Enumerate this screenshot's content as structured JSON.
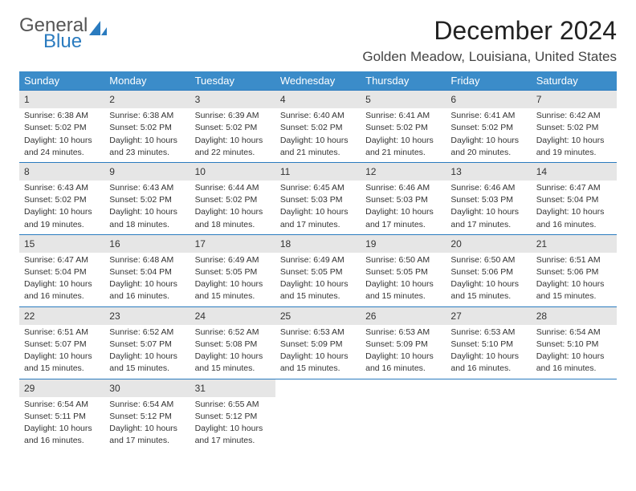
{
  "logo": {
    "line1": "General",
    "line2": "Blue"
  },
  "title": "December 2024",
  "location": "Golden Meadow, Louisiana, United States",
  "weekday_headers": [
    "Sunday",
    "Monday",
    "Tuesday",
    "Wednesday",
    "Thursday",
    "Friday",
    "Saturday"
  ],
  "colors": {
    "header_bg": "#3b8cc9",
    "header_fg": "#ffffff",
    "daynum_bg": "#e6e6e6",
    "border": "#2a7bbf",
    "logo_blue": "#2a7bbf",
    "text": "#333333",
    "page_bg": "#ffffff"
  },
  "days": [
    {
      "n": "1",
      "sr": "Sunrise: 6:38 AM",
      "ss": "Sunset: 5:02 PM",
      "dl1": "Daylight: 10 hours",
      "dl2": "and 24 minutes."
    },
    {
      "n": "2",
      "sr": "Sunrise: 6:38 AM",
      "ss": "Sunset: 5:02 PM",
      "dl1": "Daylight: 10 hours",
      "dl2": "and 23 minutes."
    },
    {
      "n": "3",
      "sr": "Sunrise: 6:39 AM",
      "ss": "Sunset: 5:02 PM",
      "dl1": "Daylight: 10 hours",
      "dl2": "and 22 minutes."
    },
    {
      "n": "4",
      "sr": "Sunrise: 6:40 AM",
      "ss": "Sunset: 5:02 PM",
      "dl1": "Daylight: 10 hours",
      "dl2": "and 21 minutes."
    },
    {
      "n": "5",
      "sr": "Sunrise: 6:41 AM",
      "ss": "Sunset: 5:02 PM",
      "dl1": "Daylight: 10 hours",
      "dl2": "and 21 minutes."
    },
    {
      "n": "6",
      "sr": "Sunrise: 6:41 AM",
      "ss": "Sunset: 5:02 PM",
      "dl1": "Daylight: 10 hours",
      "dl2": "and 20 minutes."
    },
    {
      "n": "7",
      "sr": "Sunrise: 6:42 AM",
      "ss": "Sunset: 5:02 PM",
      "dl1": "Daylight: 10 hours",
      "dl2": "and 19 minutes."
    },
    {
      "n": "8",
      "sr": "Sunrise: 6:43 AM",
      "ss": "Sunset: 5:02 PM",
      "dl1": "Daylight: 10 hours",
      "dl2": "and 19 minutes."
    },
    {
      "n": "9",
      "sr": "Sunrise: 6:43 AM",
      "ss": "Sunset: 5:02 PM",
      "dl1": "Daylight: 10 hours",
      "dl2": "and 18 minutes."
    },
    {
      "n": "10",
      "sr": "Sunrise: 6:44 AM",
      "ss": "Sunset: 5:02 PM",
      "dl1": "Daylight: 10 hours",
      "dl2": "and 18 minutes."
    },
    {
      "n": "11",
      "sr": "Sunrise: 6:45 AM",
      "ss": "Sunset: 5:03 PM",
      "dl1": "Daylight: 10 hours",
      "dl2": "and 17 minutes."
    },
    {
      "n": "12",
      "sr": "Sunrise: 6:46 AM",
      "ss": "Sunset: 5:03 PM",
      "dl1": "Daylight: 10 hours",
      "dl2": "and 17 minutes."
    },
    {
      "n": "13",
      "sr": "Sunrise: 6:46 AM",
      "ss": "Sunset: 5:03 PM",
      "dl1": "Daylight: 10 hours",
      "dl2": "and 17 minutes."
    },
    {
      "n": "14",
      "sr": "Sunrise: 6:47 AM",
      "ss": "Sunset: 5:04 PM",
      "dl1": "Daylight: 10 hours",
      "dl2": "and 16 minutes."
    },
    {
      "n": "15",
      "sr": "Sunrise: 6:47 AM",
      "ss": "Sunset: 5:04 PM",
      "dl1": "Daylight: 10 hours",
      "dl2": "and 16 minutes."
    },
    {
      "n": "16",
      "sr": "Sunrise: 6:48 AM",
      "ss": "Sunset: 5:04 PM",
      "dl1": "Daylight: 10 hours",
      "dl2": "and 16 minutes."
    },
    {
      "n": "17",
      "sr": "Sunrise: 6:49 AM",
      "ss": "Sunset: 5:05 PM",
      "dl1": "Daylight: 10 hours",
      "dl2": "and 15 minutes."
    },
    {
      "n": "18",
      "sr": "Sunrise: 6:49 AM",
      "ss": "Sunset: 5:05 PM",
      "dl1": "Daylight: 10 hours",
      "dl2": "and 15 minutes."
    },
    {
      "n": "19",
      "sr": "Sunrise: 6:50 AM",
      "ss": "Sunset: 5:05 PM",
      "dl1": "Daylight: 10 hours",
      "dl2": "and 15 minutes."
    },
    {
      "n": "20",
      "sr": "Sunrise: 6:50 AM",
      "ss": "Sunset: 5:06 PM",
      "dl1": "Daylight: 10 hours",
      "dl2": "and 15 minutes."
    },
    {
      "n": "21",
      "sr": "Sunrise: 6:51 AM",
      "ss": "Sunset: 5:06 PM",
      "dl1": "Daylight: 10 hours",
      "dl2": "and 15 minutes."
    },
    {
      "n": "22",
      "sr": "Sunrise: 6:51 AM",
      "ss": "Sunset: 5:07 PM",
      "dl1": "Daylight: 10 hours",
      "dl2": "and 15 minutes."
    },
    {
      "n": "23",
      "sr": "Sunrise: 6:52 AM",
      "ss": "Sunset: 5:07 PM",
      "dl1": "Daylight: 10 hours",
      "dl2": "and 15 minutes."
    },
    {
      "n": "24",
      "sr": "Sunrise: 6:52 AM",
      "ss": "Sunset: 5:08 PM",
      "dl1": "Daylight: 10 hours",
      "dl2": "and 15 minutes."
    },
    {
      "n": "25",
      "sr": "Sunrise: 6:53 AM",
      "ss": "Sunset: 5:09 PM",
      "dl1": "Daylight: 10 hours",
      "dl2": "and 15 minutes."
    },
    {
      "n": "26",
      "sr": "Sunrise: 6:53 AM",
      "ss": "Sunset: 5:09 PM",
      "dl1": "Daylight: 10 hours",
      "dl2": "and 16 minutes."
    },
    {
      "n": "27",
      "sr": "Sunrise: 6:53 AM",
      "ss": "Sunset: 5:10 PM",
      "dl1": "Daylight: 10 hours",
      "dl2": "and 16 minutes."
    },
    {
      "n": "28",
      "sr": "Sunrise: 6:54 AM",
      "ss": "Sunset: 5:10 PM",
      "dl1": "Daylight: 10 hours",
      "dl2": "and 16 minutes."
    },
    {
      "n": "29",
      "sr": "Sunrise: 6:54 AM",
      "ss": "Sunset: 5:11 PM",
      "dl1": "Daylight: 10 hours",
      "dl2": "and 16 minutes."
    },
    {
      "n": "30",
      "sr": "Sunrise: 6:54 AM",
      "ss": "Sunset: 5:12 PM",
      "dl1": "Daylight: 10 hours",
      "dl2": "and 17 minutes."
    },
    {
      "n": "31",
      "sr": "Sunrise: 6:55 AM",
      "ss": "Sunset: 5:12 PM",
      "dl1": "Daylight: 10 hours",
      "dl2": "and 17 minutes."
    }
  ],
  "grid": {
    "start_weekday": 0,
    "total_cells": 35
  }
}
